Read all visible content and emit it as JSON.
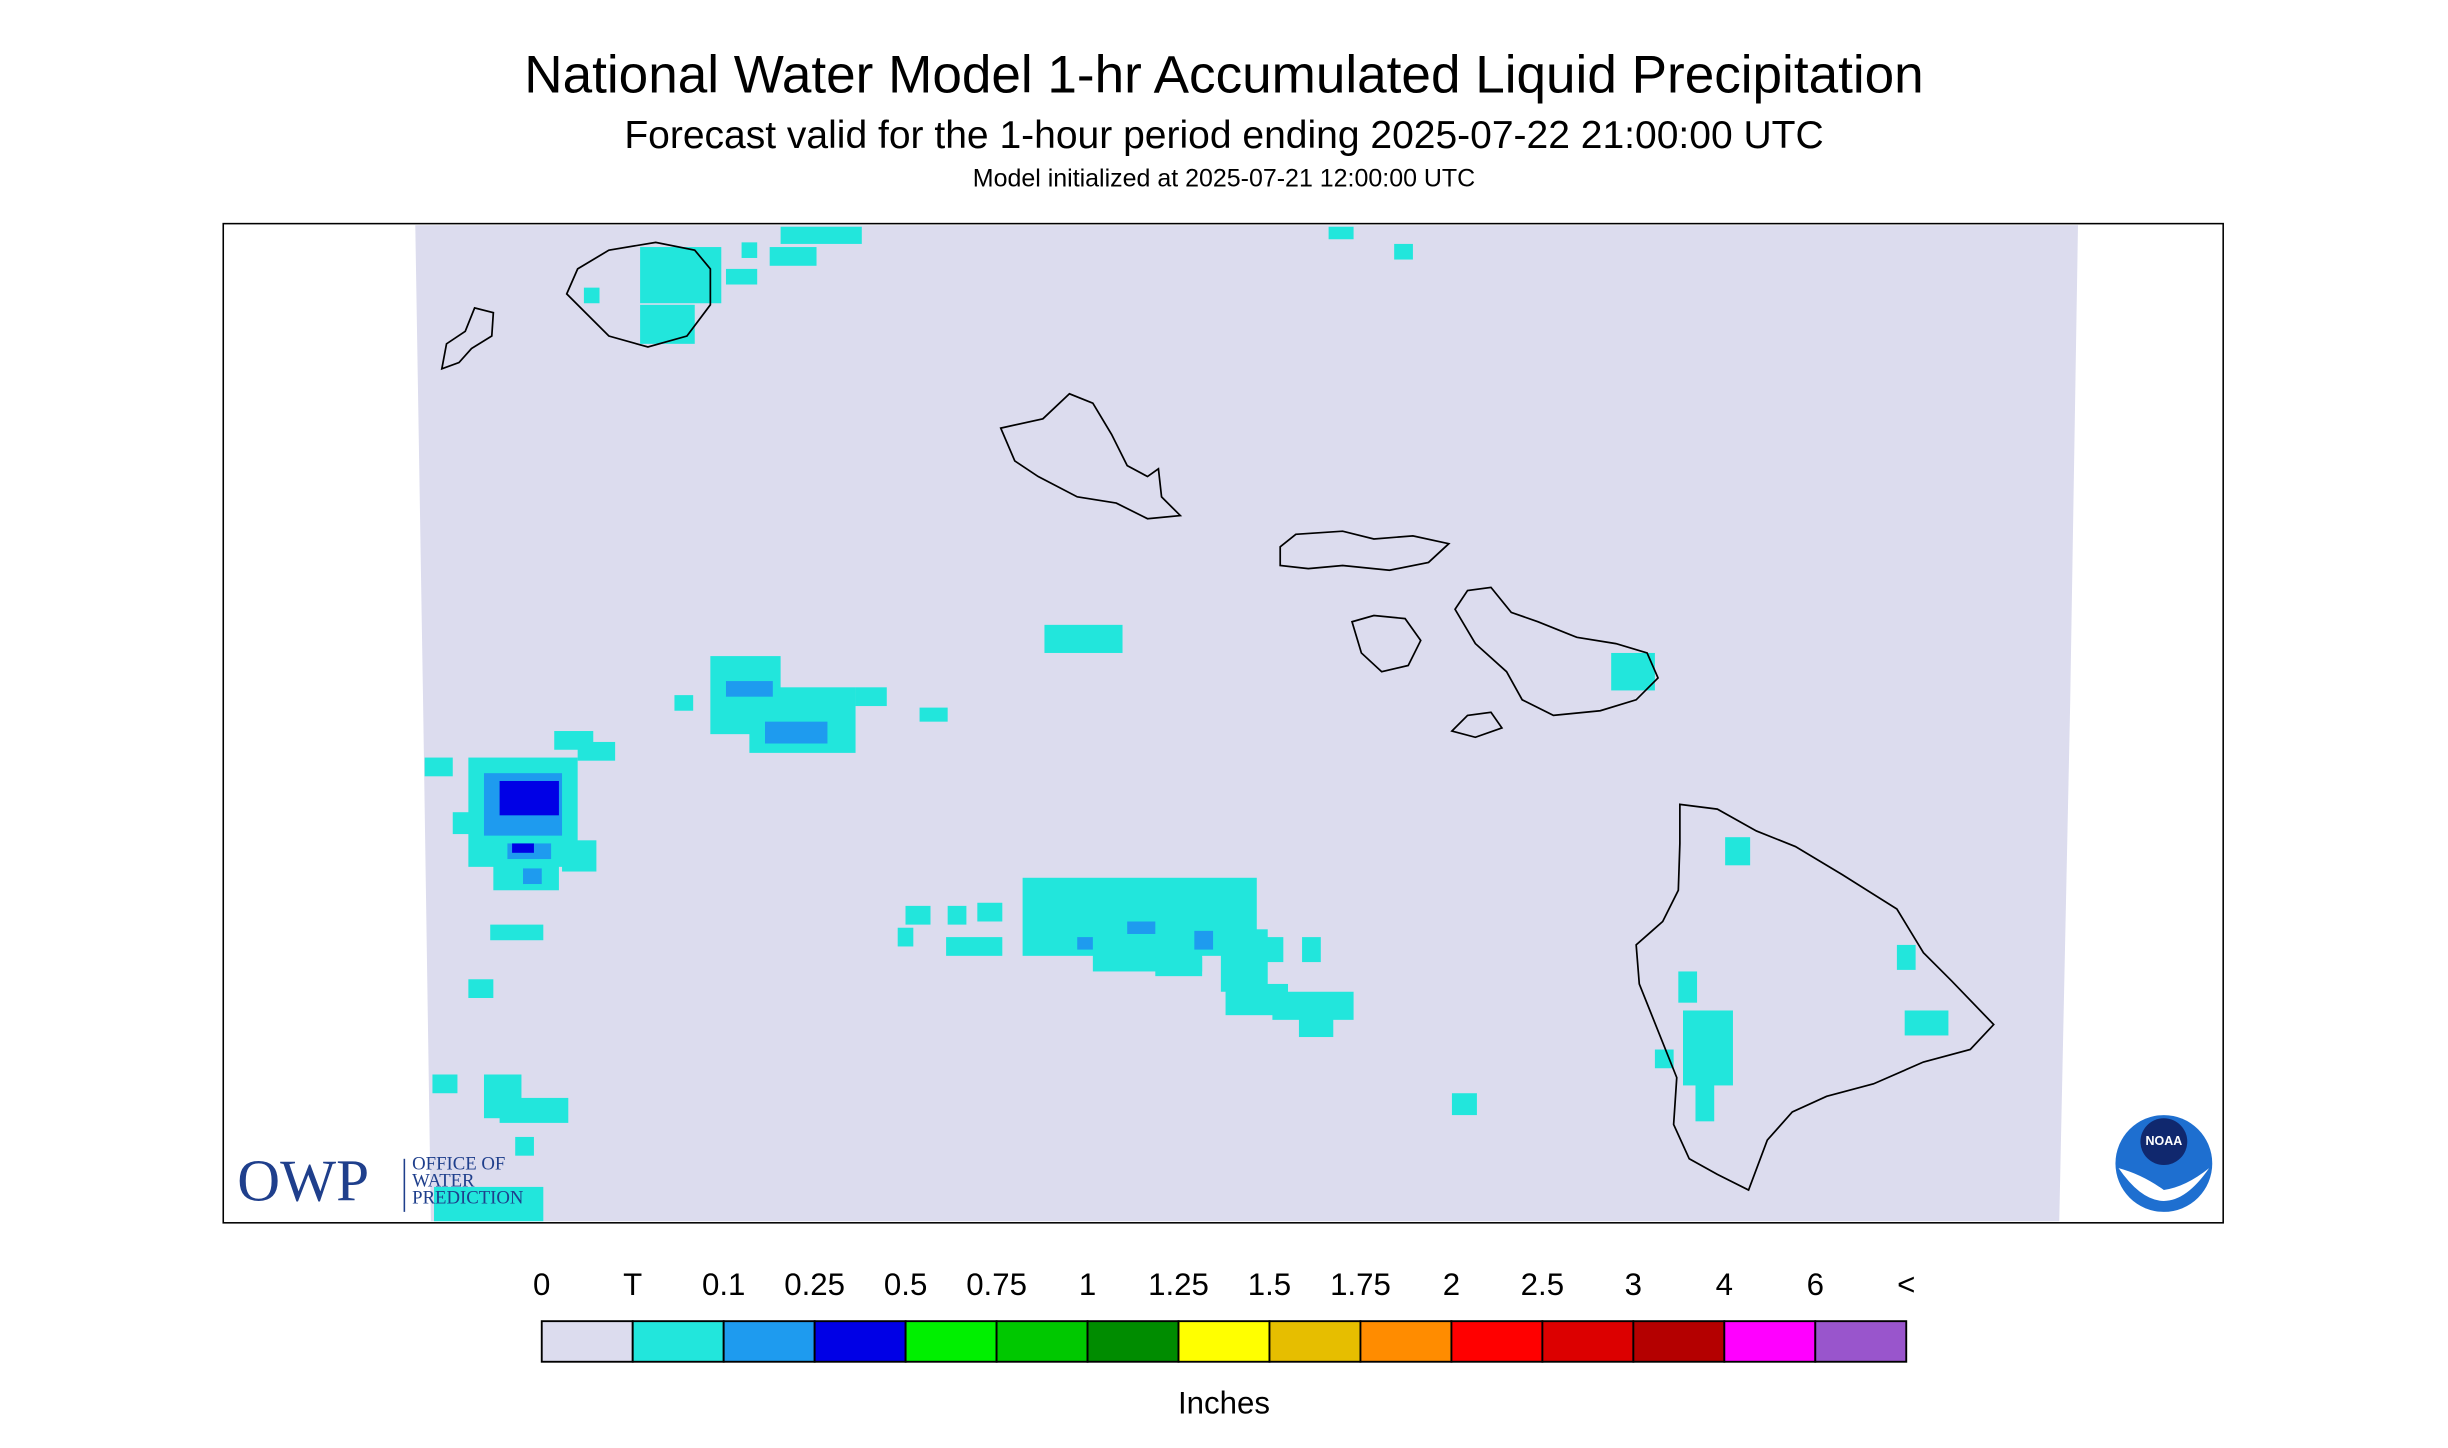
{
  "header": {
    "title": "National Water Model 1-hr Accumulated Liquid Precipitation",
    "subtitle": "Forecast valid for the 1-hour period ending 2025-07-22 21:00:00 UTC",
    "initialized": "Model initialized at 2025-07-21 12:00:00 UTC"
  },
  "legend": {
    "labels": [
      "0",
      "T",
      "0.1",
      "0.25",
      "0.5",
      "0.75",
      "1",
      "1.25",
      "1.5",
      "1.75",
      "2",
      "2.5",
      "3",
      "4",
      "6",
      "<"
    ],
    "colors": [
      "#dcdcee",
      "#22e6dc",
      "#1e9bef",
      "#0000e6",
      "#00f000",
      "#00c800",
      "#008c00",
      "#ffff00",
      "#e6be00",
      "#ff8c00",
      "#ff0000",
      "#dc0000",
      "#b40000",
      "#ff00ff",
      "#9955cc"
    ],
    "unit": "Inches"
  },
  "logos": {
    "owp": "OWP",
    "owp_name": [
      "OFFICE OF",
      "WATER",
      "PREDICTION"
    ],
    "noaa": "NOAA"
  }
}
